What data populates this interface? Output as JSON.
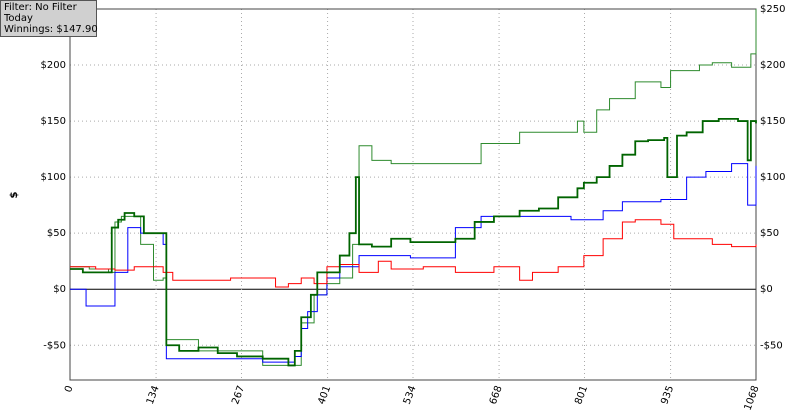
{
  "chart_data": {
    "type": "line",
    "info": [
      "Filter: No Filter",
      "Today",
      "Winnings: $147.90"
    ],
    "y_label": "$",
    "xlim": [
      0,
      1068
    ],
    "xticks": [
      0,
      134,
      267,
      401,
      534,
      668,
      801,
      935,
      1068
    ],
    "ylim": [
      -81,
      250
    ],
    "yticks": [
      {
        "value": -50,
        "label": "-$50"
      },
      {
        "value": 0,
        "label": "$0"
      },
      {
        "value": 50,
        "label": "$50"
      },
      {
        "value": 100,
        "label": "$100"
      },
      {
        "value": 150,
        "label": "$150"
      },
      {
        "value": 200,
        "label": "$200"
      },
      {
        "value": 250,
        "label": "$250"
      }
    ],
    "grid": true,
    "step": true,
    "series": [
      {
        "color": "#2e8b2e",
        "linewidth": 1,
        "x": [
          0,
          30,
          60,
          70,
          80,
          110,
          130,
          145,
          150,
          200,
          260,
          300,
          340,
          360,
          380,
          400,
          420,
          440,
          450,
          470,
          500,
          550,
          600,
          640,
          700,
          760,
          790,
          800,
          820,
          840,
          880,
          920,
          935,
          980,
          1000,
          1030,
          1060,
          1068
        ],
        "values": [
          20,
          18,
          15,
          60,
          65,
          40,
          8,
          10,
          -45,
          -55,
          -55,
          -68,
          -68,
          -30,
          -5,
          5,
          10,
          40,
          128,
          115,
          112,
          112,
          112,
          130,
          140,
          140,
          150,
          140,
          160,
          170,
          185,
          180,
          195,
          200,
          202,
          198,
          210,
          250
        ]
      },
      {
        "color": "#0000ff",
        "linewidth": 1,
        "x": [
          0,
          25,
          50,
          70,
          90,
          110,
          145,
          150,
          300,
          350,
          360,
          370,
          385,
          400,
          420,
          450,
          480,
          530,
          600,
          640,
          700,
          780,
          830,
          860,
          920,
          950,
          960,
          990,
          1000,
          1030,
          1050,
          1055,
          1065,
          1068
        ],
        "values": [
          0,
          -15,
          -15,
          15,
          55,
          50,
          40,
          -62,
          -65,
          -60,
          -35,
          -20,
          -5,
          10,
          20,
          30,
          30,
          28,
          55,
          65,
          65,
          62,
          70,
          78,
          80,
          80,
          100,
          105,
          105,
          112,
          112,
          75,
          75,
          110
        ]
      },
      {
        "color": "#ff0000",
        "linewidth": 1,
        "x": [
          0,
          40,
          70,
          100,
          145,
          160,
          200,
          250,
          300,
          320,
          340,
          360,
          380,
          400,
          420,
          450,
          480,
          500,
          550,
          600,
          630,
          660,
          700,
          720,
          760,
          790,
          800,
          830,
          860,
          880,
          920,
          940,
          960,
          1000,
          1030,
          1068
        ],
        "values": [
          20,
          18,
          17,
          20,
          15,
          8,
          8,
          10,
          10,
          2,
          5,
          10,
          5,
          20,
          22,
          15,
          25,
          18,
          20,
          15,
          15,
          20,
          8,
          15,
          20,
          20,
          30,
          45,
          60,
          62,
          58,
          45,
          45,
          40,
          38,
          40
        ]
      },
      {
        "color": "#006400",
        "linewidth": 1.8,
        "x": [
          0,
          20,
          40,
          60,
          65,
          75,
          85,
          100,
          115,
          145,
          150,
          170,
          200,
          230,
          260,
          300,
          340,
          350,
          360,
          375,
          385,
          400,
          420,
          435,
          445,
          450,
          470,
          500,
          530,
          560,
          600,
          630,
          660,
          700,
          730,
          760,
          790,
          800,
          820,
          840,
          860,
          880,
          900,
          925,
          930,
          945,
          960,
          985,
          1010,
          1040,
          1055,
          1060,
          1068
        ],
        "values": [
          18,
          15,
          15,
          15,
          55,
          62,
          68,
          65,
          50,
          50,
          -50,
          -55,
          -52,
          -57,
          -60,
          -62,
          -68,
          -55,
          -25,
          -5,
          15,
          15,
          30,
          50,
          100,
          40,
          38,
          45,
          42,
          42,
          45,
          60,
          65,
          70,
          72,
          82,
          90,
          95,
          100,
          110,
          120,
          132,
          133,
          135,
          100,
          137,
          140,
          150,
          152,
          150,
          115,
          150,
          148
        ]
      }
    ]
  }
}
